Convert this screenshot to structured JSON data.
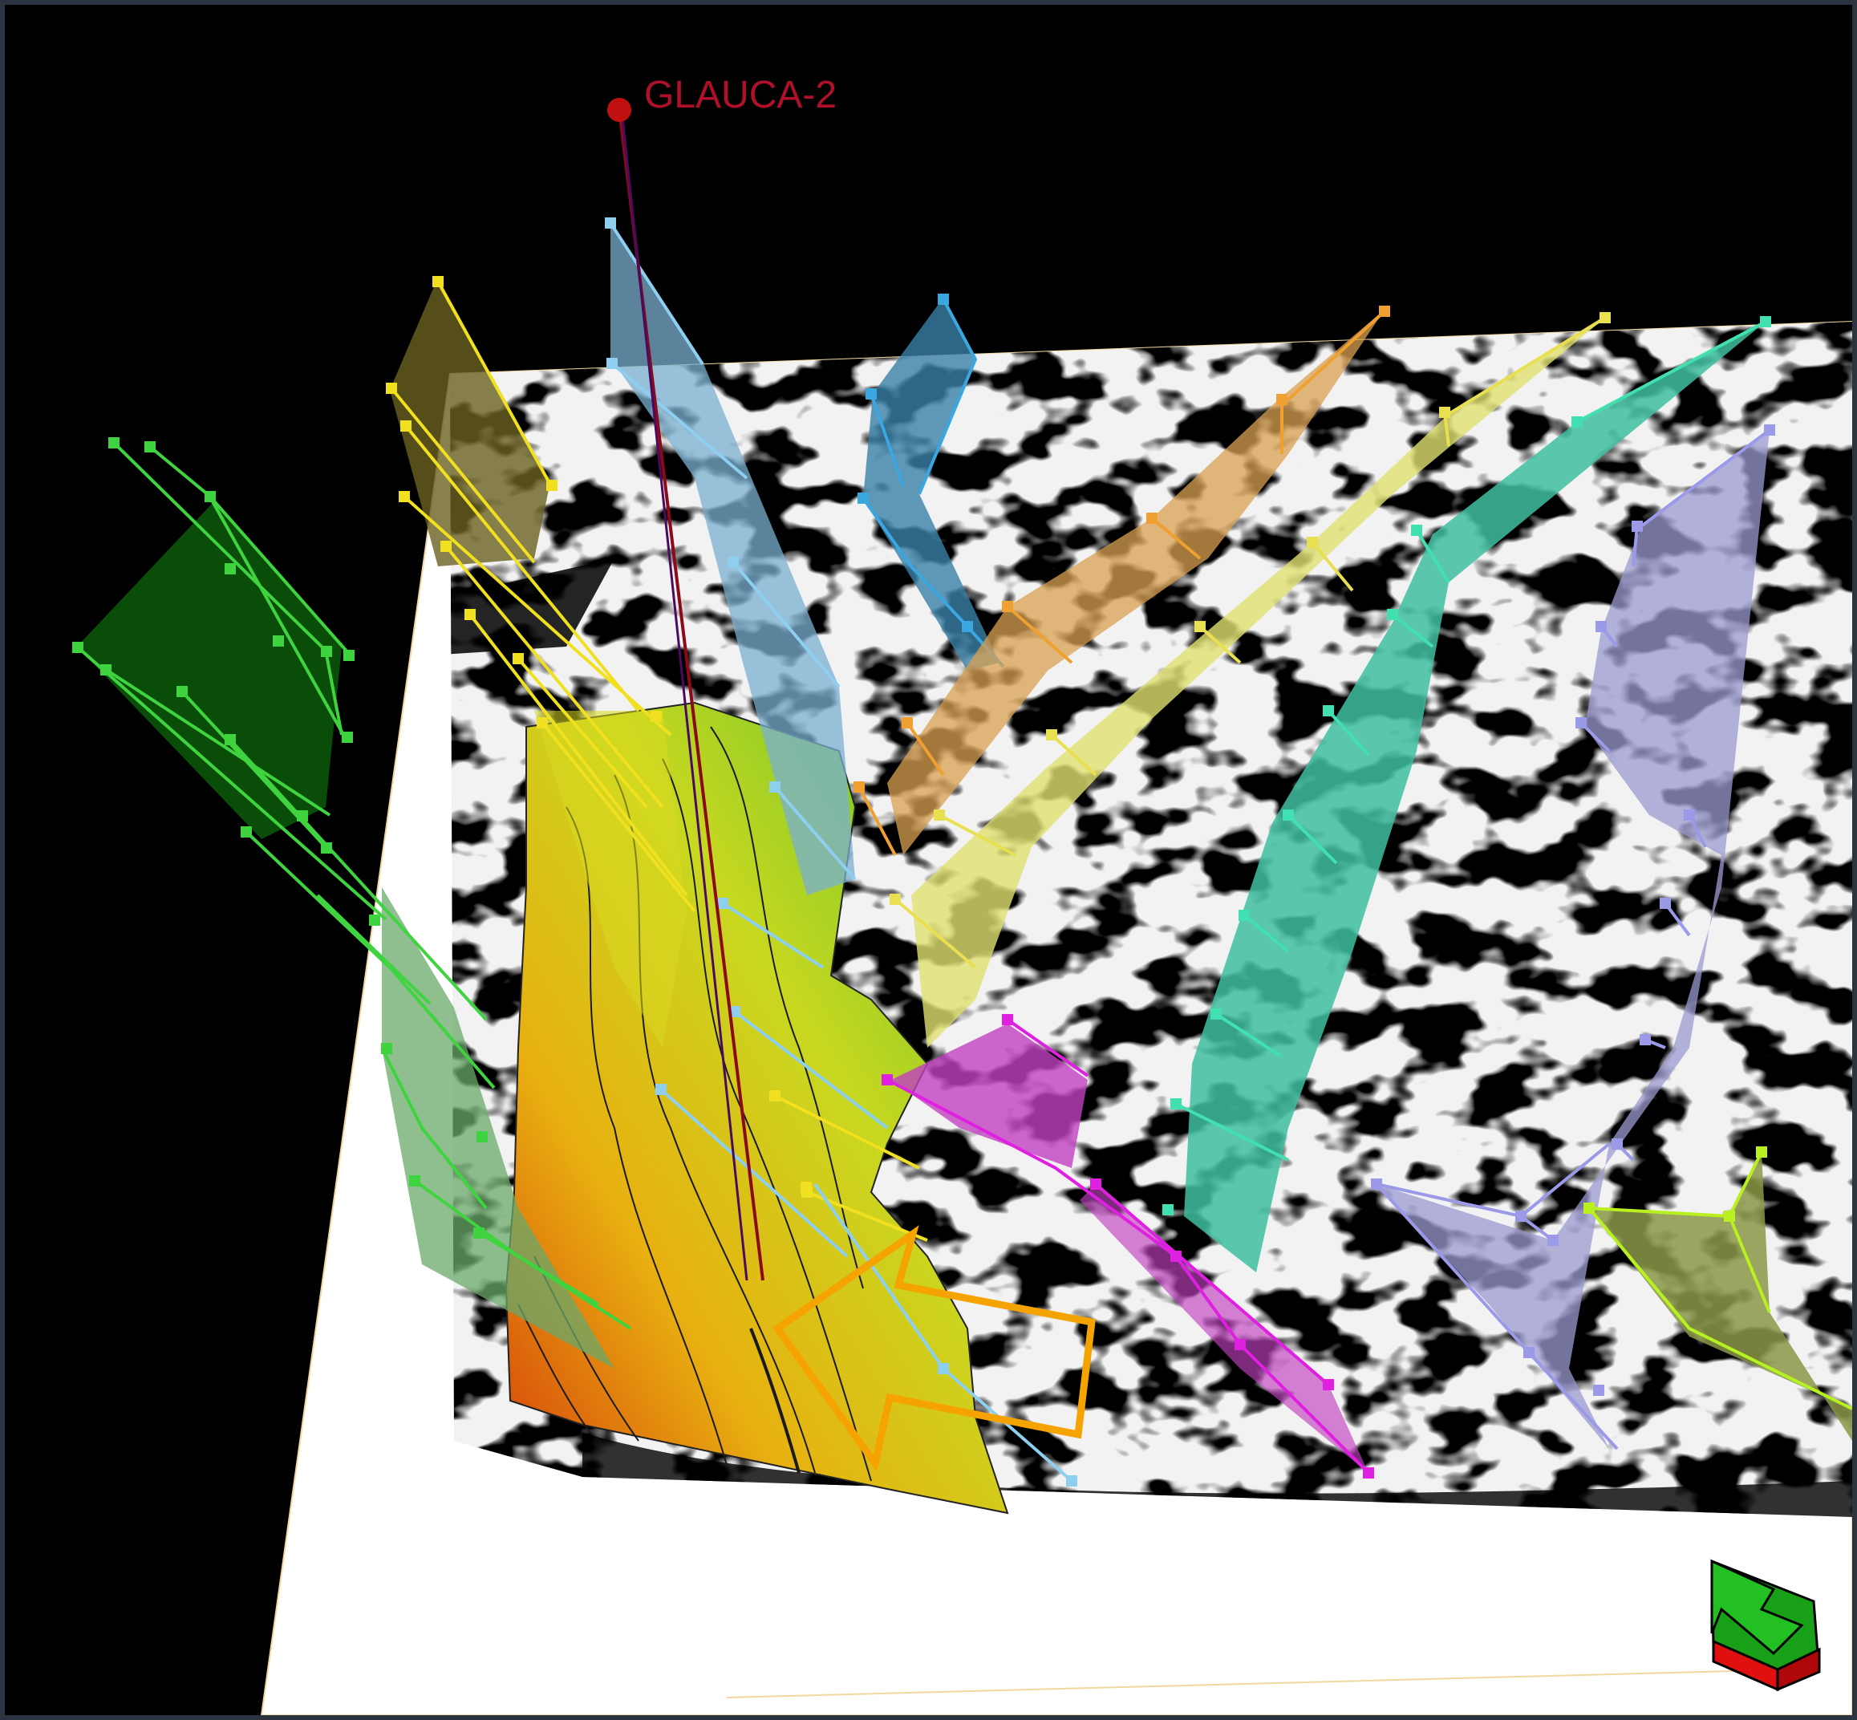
{
  "viewer": {
    "well": {
      "name": "GLAUCA-2",
      "color": "#b0102a"
    },
    "annotation": {
      "type": "arrow",
      "color": "#f5a300",
      "direction": "pointing-left"
    },
    "orientation_widget": {
      "icon": "axis-orientation-icon",
      "colors": [
        "#1fb51f",
        "#e01010"
      ]
    },
    "fault_sticks": {
      "colors": [
        "#3fd43f",
        "#f0e020",
        "#8ecff0",
        "#3aa7e0",
        "#f0a030",
        "#e8e050",
        "#40e0b0",
        "#9a9ae8",
        "#e020e0",
        "#b8f020"
      ]
    },
    "surface": {
      "name": "",
      "color_scale": [
        "#d63a0a",
        "#e8b010",
        "#c8d820",
        "#50c030"
      ]
    }
  }
}
